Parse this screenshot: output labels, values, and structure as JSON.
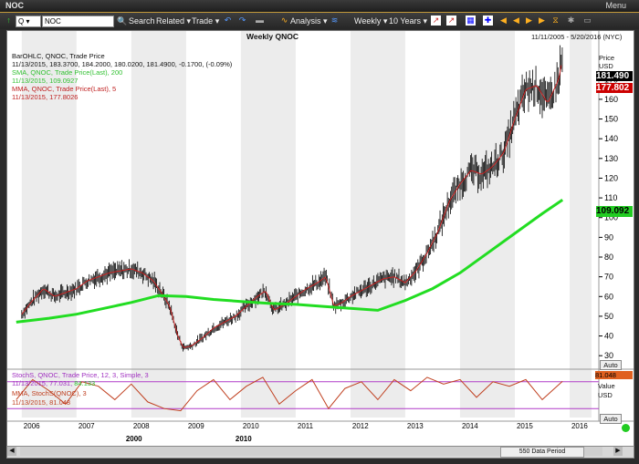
{
  "window": {
    "title": "NOC",
    "menu_label": "Menu"
  },
  "toolbar": {
    "symbol_input": "NOC",
    "search_label": "Search",
    "related_label": "Related",
    "trade_label": "Trade",
    "analysis_label": "Analysis",
    "weekly_label": "Weekly",
    "range_label": "10 Years"
  },
  "chart": {
    "title": "Weekly QNOC",
    "date_range": "11/11/2005 - 5/20/2016 (NYC)",
    "price_axis_label": "Price",
    "price_axis_unit": "USD",
    "value_axis_label": "Value",
    "value_axis_unit": "USD",
    "auto_label": "Auto",
    "period_label": "550 Data Period"
  },
  "legend": {
    "bar_title": "BarOHLC, QNOC, Trade Price",
    "bar_values": "11/13/2015, 183.3700, 184.2000, 180.0200, 181.4900, -0.1700, (-0.09%)",
    "sma_title": "SMA, QNOC, Trade Price(Last), 200",
    "sma_values": "11/13/2015, 109.0927",
    "mma_title": "MMA, QNOC, Trade Price(Last), 5",
    "mma_values": "11/13/2015, 177.8026",
    "stoch_title": "StochS, QNOC, Trade Price, 12, 3, Simple, 3",
    "stoch_values_a": "11/13/2015, 77.031,",
    "stoch_values_b": "84.133",
    "mma2_title": "MMA, StochS(QNOC), 3",
    "mma2_values": "11/13/2015, 81.048"
  },
  "badges": {
    "last_price": "181.490",
    "mma_price": "177.802",
    "sma_price": "109.092",
    "stoch_value": "81.048"
  },
  "colors": {
    "price_bars": "#000000",
    "sma_line": "#22dd22",
    "mma_line": "#cc2222",
    "stoch_line": "#b03cc8",
    "stoch_mma": "#c04020",
    "last_badge": "#000000",
    "mma_badge": "#cc0000",
    "sma_badge": "#22cc22",
    "stoch_badge": "#e06020"
  },
  "chart_data": {
    "type": "line",
    "y_ticks": [
      30,
      40,
      50,
      60,
      70,
      80,
      90,
      100,
      110,
      120,
      130,
      140,
      150,
      160,
      170
    ],
    "x_ticks": [
      "2006",
      "2007",
      "2008",
      "2009",
      "2010",
      "2011",
      "2012",
      "2013",
      "2014",
      "2015",
      "2016"
    ],
    "era_labels": [
      "2000",
      "2010"
    ],
    "price_series": {
      "name": "QNOC",
      "x": [
        2006.0,
        2006.2,
        2006.4,
        2006.6,
        2006.8,
        2007.0,
        2007.2,
        2007.4,
        2007.6,
        2007.8,
        2008.0,
        2008.2,
        2008.4,
        2008.55,
        2008.7,
        2008.85,
        2008.95,
        2009.1,
        2009.3,
        2009.5,
        2009.7,
        2009.9,
        2010.1,
        2010.3,
        2010.45,
        2010.6,
        2010.8,
        2011.0,
        2011.2,
        2011.4,
        2011.55,
        2011.7,
        2011.85,
        2012.0,
        2012.2,
        2012.4,
        2012.6,
        2012.8,
        2013.0,
        2013.2,
        2013.4,
        2013.6,
        2013.8,
        2014.0,
        2014.2,
        2014.4,
        2014.6,
        2014.8,
        2015.0,
        2015.2,
        2015.4,
        2015.6,
        2015.8,
        2015.87
      ],
      "y": [
        51,
        58,
        64,
        60,
        62,
        64,
        68,
        70,
        72,
        73,
        74,
        72,
        68,
        62,
        55,
        40,
        34,
        35,
        39,
        44,
        47,
        50,
        55,
        60,
        63,
        53,
        56,
        60,
        64,
        67,
        70,
        55,
        57,
        60,
        63,
        66,
        69,
        70,
        67,
        73,
        82,
        93,
        108,
        117,
        124,
        122,
        126,
        133,
        150,
        165,
        167,
        158,
        170,
        181
      ]
    },
    "sma_series": {
      "name": "SMA",
      "x": [
        2005.9,
        2006.5,
        2007.0,
        2007.5,
        2008.0,
        2008.5,
        2009.0,
        2009.5,
        2010.0,
        2010.5,
        2011.0,
        2011.5,
        2012.0,
        2012.5,
        2013.0,
        2013.5,
        2014.0,
        2014.5,
        2015.0,
        2015.5,
        2015.87
      ],
      "y": [
        47,
        49,
        51,
        54,
        57,
        60.5,
        60,
        58.5,
        57.5,
        56.5,
        56,
        55,
        54,
        53,
        58,
        64,
        72,
        82,
        92,
        102,
        109
      ]
    },
    "stoch_series": {
      "name": "StochS",
      "x": [
        2005.9,
        2006.2,
        2006.5,
        2006.8,
        2007.1,
        2007.4,
        2007.7,
        2008.0,
        2008.3,
        2008.6,
        2008.9,
        2009.2,
        2009.5,
        2009.8,
        2010.1,
        2010.4,
        2010.7,
        2011.0,
        2011.3,
        2011.6,
        2011.9,
        2012.2,
        2012.5,
        2012.8,
        2013.1,
        2013.4,
        2013.7,
        2014.0,
        2014.3,
        2014.6,
        2014.9,
        2015.2,
        2015.5,
        2015.87
      ],
      "y": [
        40,
        85,
        60,
        30,
        80,
        70,
        40,
        75,
        35,
        20,
        15,
        60,
        85,
        40,
        70,
        90,
        30,
        60,
        85,
        20,
        65,
        80,
        40,
        85,
        60,
        90,
        75,
        85,
        45,
        80,
        70,
        85,
        40,
        81
      ]
    },
    "ylim": [
      25,
      190
    ],
    "xlim": [
      2005.87,
      2016.4
    ]
  }
}
